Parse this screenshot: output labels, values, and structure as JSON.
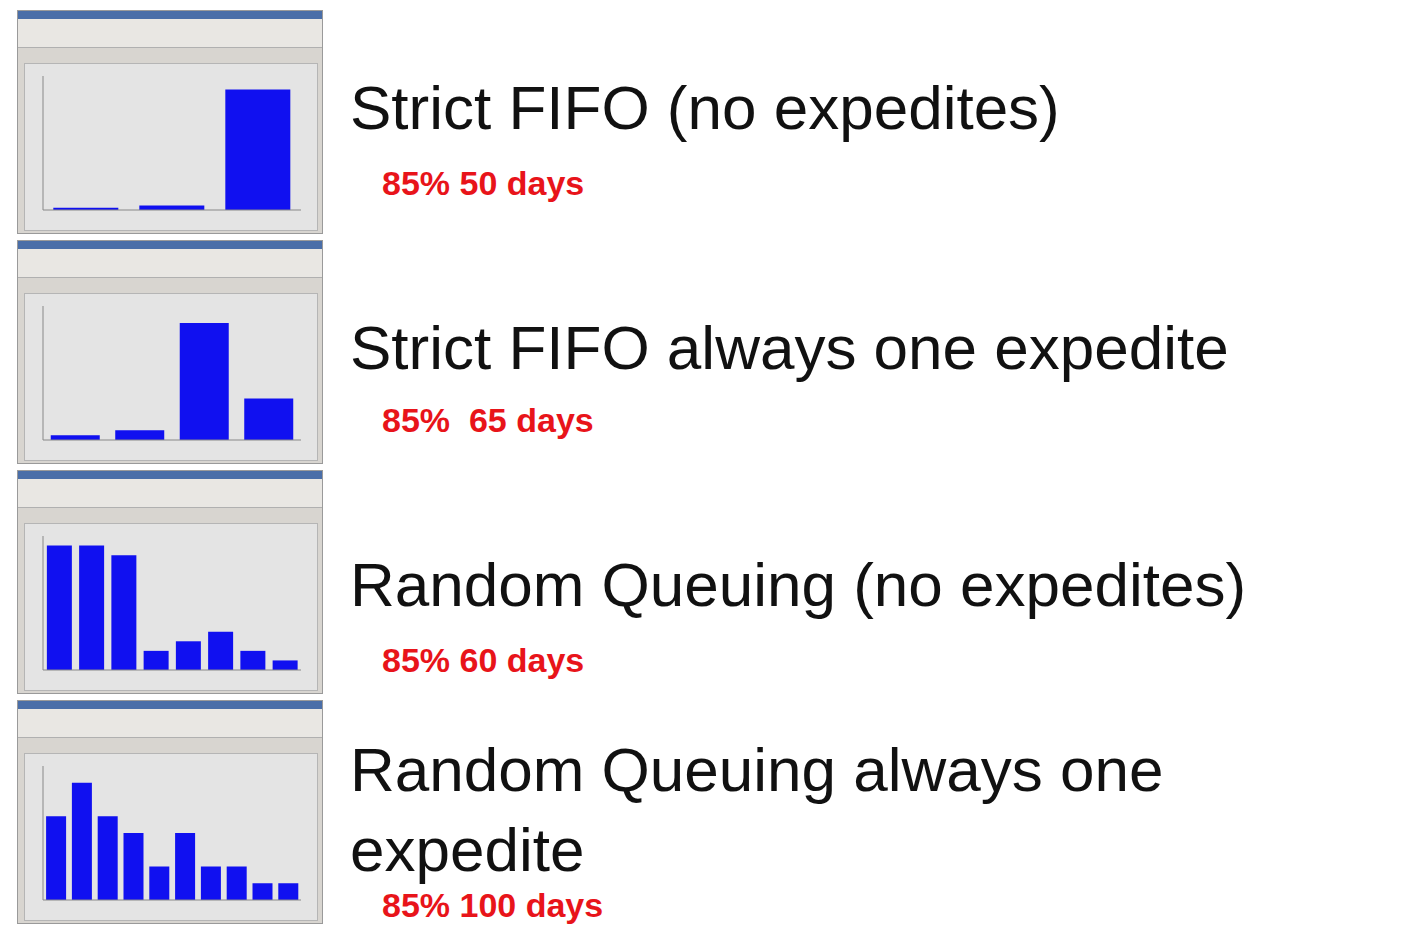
{
  "chart_data": [
    {
      "type": "bar",
      "title": "Strict FIFO (no expedites)",
      "annotation": "85% 50 days",
      "categories": [
        null,
        null,
        null
      ],
      "values": [
        1,
        2,
        54
      ],
      "ylim": [
        0,
        60
      ],
      "color": "#1010f0",
      "tick_labels": false,
      "grid": false
    },
    {
      "type": "bar",
      "title": "Strict FIFO always one expedite",
      "annotation": "85%  65 days",
      "categories": [
        null,
        null,
        null,
        null
      ],
      "values": [
        2,
        4,
        48,
        17
      ],
      "ylim": [
        0,
        55
      ],
      "color": "#1010f0",
      "tick_labels": false,
      "grid": false
    },
    {
      "type": "bar",
      "title": "Random Queuing (no expedites)",
      "annotation": "85% 60 days",
      "categories": [
        null,
        null,
        null,
        null,
        null,
        null,
        null,
        null
      ],
      "values": [
        13,
        13,
        12,
        2,
        3,
        4,
        2,
        1
      ],
      "ylim": [
        0,
        14
      ],
      "color": "#1010f0",
      "tick_labels": false,
      "grid": false
    },
    {
      "type": "bar",
      "title": "Random Queuing always one expedite",
      "annotation": "85% 100 days",
      "categories": [
        null,
        null,
        null,
        null,
        null,
        null,
        null,
        null,
        null,
        null
      ],
      "values": [
        5,
        7,
        5,
        4,
        2,
        4,
        2,
        2,
        1,
        1
      ],
      "ylim": [
        0,
        8
      ],
      "color": "#1010f0",
      "tick_labels": false,
      "grid": false
    }
  ]
}
